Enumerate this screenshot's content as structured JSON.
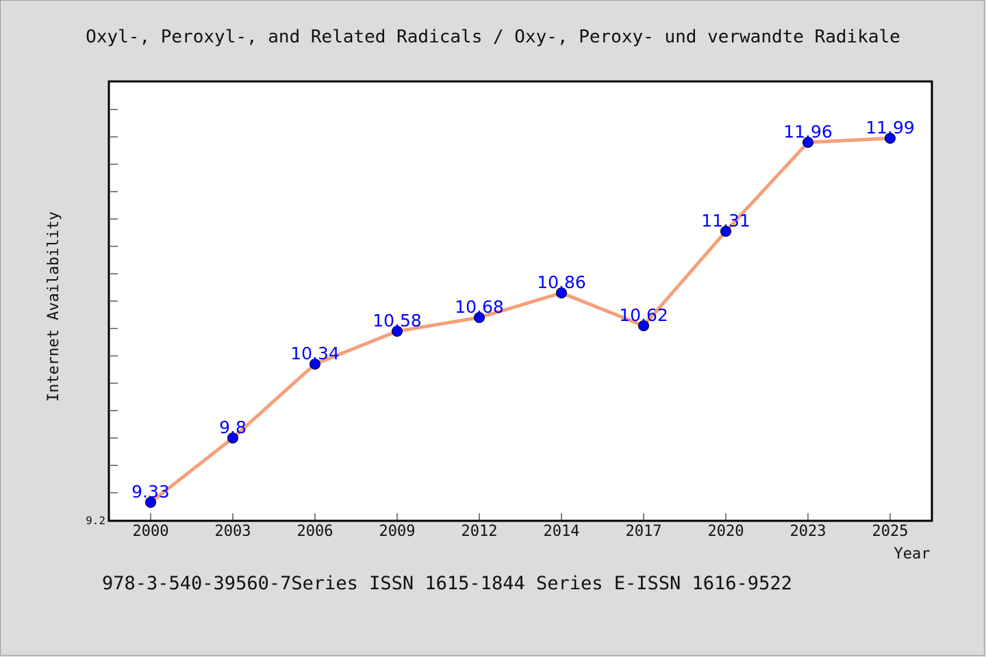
{
  "chart_data": {
    "type": "line",
    "title": "Oxyl-, Peroxyl-, and Related Radicals / Oxy-, Peroxy- und verwandte Radikale",
    "xlabel": "Year",
    "ylabel": "Internet Availability",
    "footer": "978-3-540-39560-7Series ISSN 1615-1844 Series E-ISSN 1616-9522",
    "categories": [
      "2000",
      "2003",
      "2006",
      "2009",
      "2012",
      "2014",
      "2017",
      "2020",
      "2023",
      "2025"
    ],
    "series": [
      {
        "values": [
          9.33,
          9.8,
          10.34,
          10.58,
          10.68,
          10.86,
          10.62,
          11.31,
          11.96,
          11.99
        ],
        "data_labels": [
          "9.33",
          "9.8",
          "10.34",
          "10.58",
          "10.68",
          "10.86",
          "10.62",
          "11.31",
          "11.96",
          "11.99"
        ]
      }
    ],
    "y_tick_labels": [
      "9.2"
    ],
    "ylim": [
      9.2,
      12.4
    ],
    "grid": false,
    "colors": {
      "line": "#f4a07c",
      "marker": "#0000ff",
      "label": "#0000ff"
    }
  }
}
